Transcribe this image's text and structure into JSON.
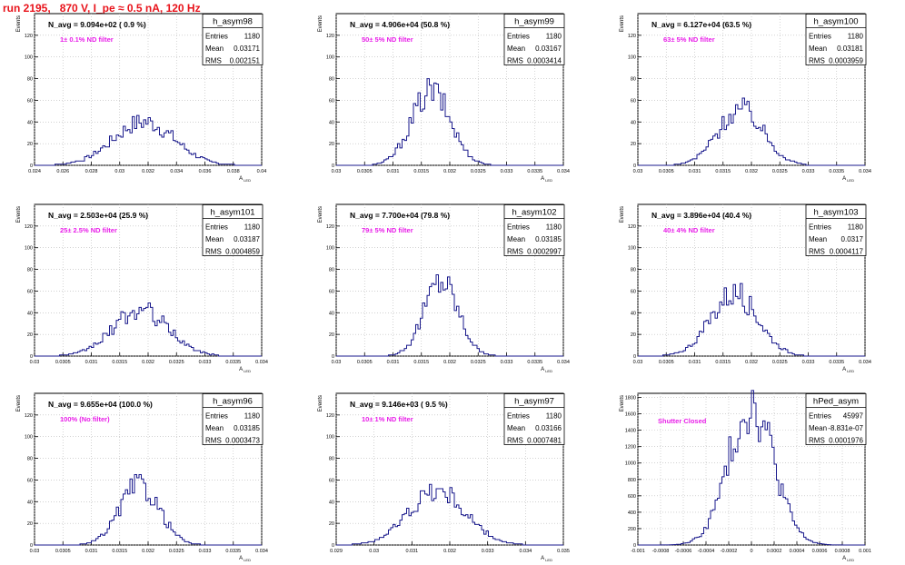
{
  "page_title": "run 2195,   870 V, I_pe ≈ 0.5 nA, 120 Hz",
  "colors": {
    "histogram_line": "#1a1a8c",
    "annotation": "#e81ee8",
    "title": "#e8121a",
    "grid": "#b8b8b8"
  },
  "stats_labels": {
    "entries": "Entries",
    "mean": "Mean",
    "rms": "RMS"
  },
  "chart_data": [
    {
      "type": "bar",
      "name": "h_asym98",
      "ylabel": "Events",
      "xlabel": "A_{LED}",
      "headline": "N_avg = 9.094e+02 ( 0.9 %)",
      "note": "1± 0.1% ND filter",
      "stats": {
        "entries": "1180",
        "mean": "0.03171",
        "rms": "0.002151"
      },
      "xlim": [
        0.024,
        0.04
      ],
      "ylim": [
        0,
        140
      ],
      "x_ticks": [
        "0.024",
        "0.026",
        "0.028",
        "0.03",
        "0.032",
        "0.034",
        "0.036",
        "0.038",
        "0.04"
      ],
      "y_ticks": [
        "0",
        "20",
        "40",
        "60",
        "80",
        "100",
        "120"
      ],
      "mean": 0.03171,
      "rms": 0.002151,
      "peak": 40
    },
    {
      "type": "bar",
      "name": "h_asym99",
      "ylabel": "Events",
      "xlabel": "A_{LED}",
      "headline": "N_avg = 4.906e+04 (50.8 %)",
      "note": "50± 5% ND filter",
      "stats": {
        "entries": "1180",
        "mean": "0.03167",
        "rms": "0.0003414"
      },
      "xlim": [
        0.03,
        0.034
      ],
      "ylim": [
        0,
        140
      ],
      "x_ticks": [
        "0.03",
        "0.0305",
        "0.031",
        "0.0315",
        "0.032",
        "0.0325",
        "0.033",
        "0.0335",
        "0.034"
      ],
      "y_ticks": [
        "0",
        "20",
        "40",
        "60",
        "80",
        "100",
        "120"
      ],
      "mean": 0.03167,
      "rms": 0.0003414,
      "peak": 68
    },
    {
      "type": "bar",
      "name": "h_asym100",
      "ylabel": "Events",
      "xlabel": "A_{LED}",
      "headline": "N_avg = 6.127e+04 (63.5 %)",
      "note": "63± 5% ND filter",
      "stats": {
        "entries": "1180",
        "mean": "0.03181",
        "rms": "0.0003959"
      },
      "xlim": [
        0.03,
        0.034
      ],
      "ylim": [
        0,
        140
      ],
      "x_ticks": [
        "0.03",
        "0.0305",
        "0.031",
        "0.0315",
        "0.032",
        "0.0325",
        "0.033",
        "0.0335",
        "0.034"
      ],
      "y_ticks": [
        "0",
        "20",
        "40",
        "60",
        "80",
        "100",
        "120"
      ],
      "mean": 0.03181,
      "rms": 0.0003959,
      "peak": 52
    },
    {
      "type": "bar",
      "name": "h_asym101",
      "ylabel": "Events",
      "xlabel": "A_{LED}",
      "headline": "N_avg = 2.503e+04 (25.9 %)",
      "note": "25± 2.5% ND filter",
      "stats": {
        "entries": "1180",
        "mean": "0.03187",
        "rms": "0.0004859"
      },
      "xlim": [
        0.03,
        0.034
      ],
      "ylim": [
        0,
        140
      ],
      "x_ticks": [
        "0.03",
        "0.0305",
        "0.031",
        "0.0315",
        "0.032",
        "0.0325",
        "0.033",
        "0.0335",
        "0.034"
      ],
      "y_ticks": [
        "0",
        "20",
        "40",
        "60",
        "80",
        "100",
        "120"
      ],
      "mean": 0.03187,
      "rms": 0.0004859,
      "peak": 42
    },
    {
      "type": "bar",
      "name": "h_asym102",
      "ylabel": "Events",
      "xlabel": "A_{LED}",
      "headline": "N_avg = 7.700e+04 (79.8 %)",
      "note": "79± 5% ND filter",
      "stats": {
        "entries": "1180",
        "mean": "0.03185",
        "rms": "0.0002997"
      },
      "xlim": [
        0.03,
        0.034
      ],
      "ylim": [
        0,
        140
      ],
      "x_ticks": [
        "0.03",
        "0.0305",
        "0.031",
        "0.0315",
        "0.032",
        "0.0325",
        "0.033",
        "0.0335",
        "0.034"
      ],
      "y_ticks": [
        "0",
        "20",
        "40",
        "60",
        "80",
        "100",
        "120"
      ],
      "mean": 0.03185,
      "rms": 0.0002997,
      "peak": 70
    },
    {
      "type": "bar",
      "name": "h_asym103",
      "ylabel": "Events",
      "xlabel": "A_{LED}",
      "headline": "N_avg = 3.896e+04 (40.4 %)",
      "note": "40± 4% ND filter",
      "stats": {
        "entries": "1180",
        "mean": "0.0317",
        "rms": "0.0004117"
      },
      "xlim": [
        0.03,
        0.034
      ],
      "ylim": [
        0,
        140
      ],
      "x_ticks": [
        "0.03",
        "0.0305",
        "0.031",
        "0.0315",
        "0.032",
        "0.0325",
        "0.033",
        "0.0335",
        "0.034"
      ],
      "y_ticks": [
        "0",
        "20",
        "40",
        "60",
        "80",
        "100",
        "120"
      ],
      "mean": 0.0317,
      "rms": 0.0004117,
      "peak": 58
    },
    {
      "type": "bar",
      "name": "h_asym96",
      "ylabel": "Events",
      "xlabel": "A_{LED}",
      "headline": "N_avg = 9.655e+04 (100.0 %)",
      "note": "100% (No filter)",
      "stats": {
        "entries": "1180",
        "mean": "0.03185",
        "rms": "0.0003473"
      },
      "xlim": [
        0.03,
        0.034
      ],
      "ylim": [
        0,
        140
      ],
      "x_ticks": [
        "0.03",
        "0.0305",
        "0.031",
        "0.0315",
        "0.032",
        "0.0325",
        "0.033",
        "0.0335",
        "0.034"
      ],
      "y_ticks": [
        "0",
        "20",
        "40",
        "60",
        "80",
        "100",
        "120"
      ],
      "mean": 0.03185,
      "rms": 0.0003473,
      "peak": 55
    },
    {
      "type": "bar",
      "name": "h_asym97",
      "ylabel": "Events",
      "xlabel": "A_{LED}",
      "headline": "N_avg = 9.146e+03 ( 9.5 %)",
      "note": "10± 1% ND filter",
      "stats": {
        "entries": "1180",
        "mean": "0.03166",
        "rms": "0.0007481"
      },
      "xlim": [
        0.029,
        0.035
      ],
      "ylim": [
        0,
        140
      ],
      "x_ticks": [
        "0.029",
        "0.03",
        "0.031",
        "0.032",
        "0.033",
        "0.034",
        "0.035"
      ],
      "y_ticks": [
        "0",
        "20",
        "40",
        "60",
        "80",
        "100",
        "120"
      ],
      "mean": 0.03166,
      "rms": 0.0007481,
      "peak": 50
    },
    {
      "type": "bar",
      "name": "hPed_asym",
      "ylabel": "Events",
      "xlabel": "A_{LED}",
      "headline": "",
      "note": "Shutter Closed",
      "stats": {
        "entries": "45997",
        "mean": "-8.831e-07",
        "rms": "0.0001976"
      },
      "xlim": [
        -0.001,
        0.001
      ],
      "ylim": [
        0,
        1850
      ],
      "x_ticks": [
        "-0.001",
        "-0.0008",
        "-0.0006",
        "-0.0004",
        "-0.0002",
        "0",
        "0.0002",
        "0.0004",
        "0.0006",
        "0.0008",
        "0.001"
      ],
      "y_ticks": [
        "0",
        "200",
        "400",
        "600",
        "800",
        "1000",
        "1200",
        "1400",
        "1600",
        "1800"
      ],
      "mean": -8.83e-07,
      "rms": 0.0001976,
      "peak": 1720
    }
  ]
}
